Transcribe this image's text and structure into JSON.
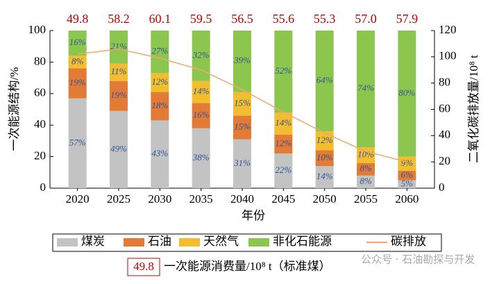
{
  "chart_data": {
    "type": "bar",
    "categories": [
      "2020",
      "2025",
      "2030",
      "2035",
      "2040",
      "2045",
      "2050",
      "2055",
      "2060"
    ],
    "series": [
      {
        "name": "煤炭",
        "color": "#c3c3c3",
        "values": [
          57,
          49,
          43,
          38,
          31,
          22,
          14,
          8,
          5
        ],
        "value_labels": [
          "57%",
          "49%",
          "43%",
          "38%",
          "31%",
          "22%",
          "14%",
          "8%",
          "5%"
        ]
      },
      {
        "name": "石油",
        "color": "#e27b35",
        "values": [
          19,
          19,
          18,
          16,
          15,
          12,
          10,
          8,
          6
        ],
        "value_labels": [
          "19%",
          "19%",
          "18%",
          "16%",
          "15%",
          "12%",
          "10%",
          "8%",
          "6%"
        ]
      },
      {
        "name": "天然气",
        "color": "#f2bd2e",
        "values": [
          8,
          11,
          12,
          14,
          15,
          14,
          12,
          10,
          9
        ],
        "value_labels": [
          "8%",
          "11%",
          "12%",
          "14%",
          "15%",
          "14%",
          "12%",
          "10%",
          "9%"
        ]
      },
      {
        "name": "非化石能源",
        "color": "#8dc64f",
        "values": [
          16,
          21,
          27,
          32,
          39,
          52,
          64,
          74,
          80
        ],
        "value_labels": [
          "16%",
          "21%",
          "27%",
          "32%",
          "39%",
          "52%",
          "64%",
          "74%",
          "80%"
        ]
      },
      {
        "name": "碳排放",
        "type": "line",
        "axis": "y2",
        "color": "#f3a86a",
        "values": [
          102,
          106,
          99,
          90,
          75,
          58,
          42,
          28,
          20
        ]
      }
    ],
    "totals": {
      "color": "#c00000",
      "values": [
        49.8,
        58.2,
        60.1,
        59.5,
        56.5,
        55.6,
        55.3,
        57.0,
        57.9
      ],
      "value_labels": [
        "49.8",
        "58.2",
        "60.1",
        "59.5",
        "56.5",
        "55.6",
        "55.3",
        "57.0",
        "57.9"
      ]
    },
    "label_color": "#2f5597",
    "x_label": "年份",
    "y_label": "一次能源结构/%",
    "y2_label": "二氧化碳排放量/10⁸ t",
    "ylim": [
      0,
      100
    ],
    "yticks": [
      0,
      20,
      40,
      60,
      80,
      100
    ],
    "y2lim": [
      0,
      120
    ],
    "y2ticks": [
      0,
      20,
      40,
      60,
      80,
      100,
      120
    ],
    "note": {
      "sample": "49.8",
      "text": "一次能源消费量/10⁸ t（标准煤）"
    },
    "watermark": "公众号 · 石油勘探与开发"
  }
}
